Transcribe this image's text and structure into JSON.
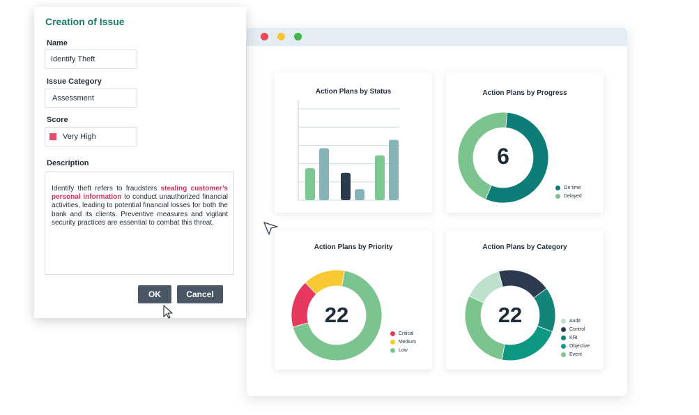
{
  "dialog": {
    "title": "Creation of Issue",
    "name_label": "Name",
    "name_value": "Identify Theft",
    "category_label": "Issue Category",
    "category_value": "Assessment",
    "score_label": "Score",
    "score_value": "Very High",
    "score_color": "#e34e6a",
    "description_label": "Description",
    "description_before": "Identify theft refers to fraudsters ",
    "description_highlight": "stealing customer’s personal information",
    "description_after": " to conduct unauthorized financial activities, leading to potential financial losses for both the bank and its clients. Preventive measures and vigilant security practices are essential to combat this threat.",
    "ok_label": "OK",
    "cancel_label": "Cancel"
  },
  "window": {
    "controls": [
      "close",
      "minimize",
      "maximize"
    ]
  },
  "colors": {
    "brand": "#1a7a6e",
    "button": "#4a5764",
    "highlight": "#d42e5c"
  },
  "chart_data": [
    {
      "type": "bar",
      "title": "Action Plans by Status",
      "categories": [
        "",
        "",
        ""
      ],
      "series": [
        {
          "values": [
            3.5,
            3.0,
            4.9
          ],
          "color_a": "#7cc893"
        },
        {
          "values": [
            5.7,
            1.2,
            6.6
          ],
          "color_a": "#86b3b6"
        }
      ],
      "middle_dark": "#2b3a4f",
      "ylim": [
        0,
        10
      ],
      "grid": true
    },
    {
      "type": "pie",
      "title": "Action Plans by Progress",
      "center_label": "6",
      "slices": [
        {
          "name": "On time",
          "value": 55,
          "color": "#0f7d77"
        },
        {
          "name": "Delayed",
          "value": 45,
          "color": "#7cc48f"
        }
      ]
    },
    {
      "type": "pie",
      "title": "Action Plans by Priority",
      "center_label": "22",
      "slices": [
        {
          "name": "Critical",
          "value": 17,
          "color": "#e7395f"
        },
        {
          "name": "Medium",
          "value": 15,
          "color": "#f9c934"
        },
        {
          "name": "Low",
          "value": 68,
          "color": "#7cc48f"
        }
      ]
    },
    {
      "type": "pie",
      "title": "Action Plans by Category",
      "center_label": "22",
      "slices": [
        {
          "name": "Audit",
          "value": 14,
          "color": "#bfe0cc"
        },
        {
          "name": "Control",
          "value": 19,
          "color": "#2b3a4f"
        },
        {
          "name": "KRI",
          "value": 16,
          "color": "#128578"
        },
        {
          "name": "Objective",
          "value": 22,
          "color": "#0e9884"
        },
        {
          "name": "Event",
          "value": 29,
          "color": "#7cc48f"
        }
      ]
    }
  ]
}
